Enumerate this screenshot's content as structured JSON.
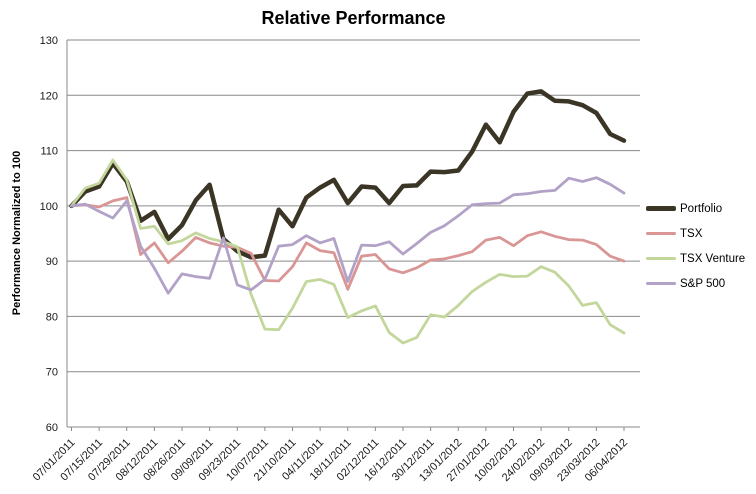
{
  "chart_data": {
    "type": "line",
    "title": "Relative Performance",
    "ylabel": "Performance Normalized to 100",
    "xlabel": "",
    "ylim": [
      60,
      130
    ],
    "ytick_step": 10,
    "grid": true,
    "legend_position": "right",
    "x_label_every": 2,
    "x_tick_labels": [
      "07/01/2011",
      "07/15/2011",
      "07/29/2011",
      "08/12/2011",
      "08/26/2011",
      "09/09/2011",
      "09/23/2011",
      "10/07/2011",
      "21/10/2011",
      "04/11/2011",
      "18/11/2011",
      "02/12/2011",
      "16/12/2011",
      "30/12/2011",
      "13/01/2012",
      "27/01/2012",
      "10/02/2012",
      "24/02/2012",
      "09/03/2012",
      "23/03/2012",
      "06/04/2012"
    ],
    "series": [
      {
        "name": "Portfolio",
        "color": "#3B3526",
        "width": 4.5,
        "values": [
          100,
          102.6,
          103.5,
          107.7,
          104.4,
          97.3,
          98.9,
          94.0,
          96.5,
          101.0,
          103.8,
          94.0,
          91.8,
          90.7,
          91.0,
          99.3,
          96.3,
          101.5,
          103.3,
          104.7,
          100.5,
          103.5,
          103.3,
          100.5,
          103.6,
          103.7,
          106.2,
          106.1,
          106.4,
          109.8,
          114.7,
          111.5,
          117.0,
          120.3,
          120.7,
          119.0,
          118.9,
          118.2,
          116.8,
          113.0,
          111.8
        ]
      },
      {
        "name": "TSX",
        "color": "#D99694",
        "width": 2.8,
        "values": [
          100,
          100.2,
          99.8,
          100.9,
          101.5,
          91.2,
          93.3,
          89.7,
          91.8,
          94.3,
          93.3,
          92.7,
          92.5,
          91.4,
          86.5,
          86.4,
          89.0,
          93.3,
          91.9,
          91.5,
          84.9,
          90.9,
          91.2,
          88.6,
          87.9,
          88.8,
          90.2,
          90.4,
          91.0,
          91.7,
          93.8,
          94.3,
          92.8,
          94.6,
          95.3,
          94.5,
          93.9,
          93.8,
          93.0,
          90.9,
          90.0
        ]
      },
      {
        "name": "TSX Venture",
        "color": "#C3D69B",
        "width": 2.8,
        "values": [
          100,
          103.2,
          104.1,
          108.3,
          104.7,
          95.9,
          96.3,
          93.1,
          93.7,
          95.1,
          94.1,
          93.5,
          92.6,
          84.0,
          77.7,
          77.6,
          81.5,
          86.3,
          86.7,
          85.8,
          79.8,
          81.0,
          81.9,
          77.1,
          75.2,
          76.2,
          80.3,
          79.9,
          82.0,
          84.5,
          86.2,
          87.6,
          87.2,
          87.3,
          89.0,
          88.0,
          85.5,
          82.0,
          82.5,
          78.5,
          77.0
        ]
      },
      {
        "name": "S&P 500",
        "color": "#B2A2C7",
        "width": 2.8,
        "values": [
          100,
          100.3,
          99.0,
          97.8,
          100.9,
          92.7,
          88.7,
          84.2,
          87.7,
          87.2,
          86.9,
          94.2,
          85.7,
          84.8,
          86.7,
          92.7,
          93.0,
          94.6,
          93.3,
          94.1,
          86.3,
          92.9,
          92.8,
          93.5,
          91.3,
          93.2,
          95.2,
          96.4,
          98.2,
          100.2,
          100.4,
          100.5,
          102.0,
          102.2,
          102.6,
          102.8,
          105.0,
          104.4,
          105.1,
          103.9,
          102.3
        ]
      }
    ],
    "axis_color": "#8A8A8A",
    "tick_label_color": "#1A1A1A",
    "tick_font_size": 11
  }
}
